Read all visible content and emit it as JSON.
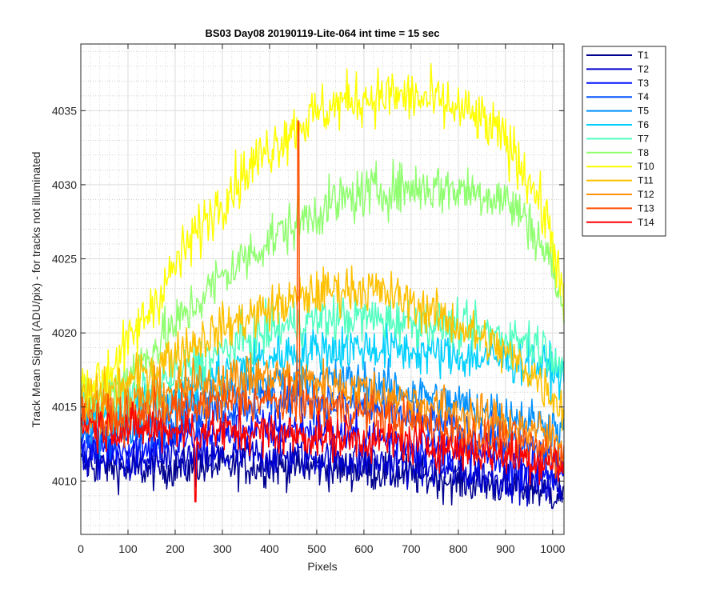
{
  "chart_data": {
    "type": "line",
    "title": "BS03 Day08 20190119-Lite-064 int time = 15 sec",
    "xlabel": "Pixels",
    "ylabel": "Track Mean Signal (ADU/pix) - for tracks not illuminated",
    "xlim": [
      0,
      1024
    ],
    "ylim": [
      4006.4,
      4039.5
    ],
    "x_ticks": [
      "0",
      "100",
      "200",
      "300",
      "400",
      "500",
      "600",
      "700",
      "800",
      "900",
      "1000"
    ],
    "y_ticks": [
      "4010",
      "4015",
      "4020",
      "4025",
      "4030",
      "4035"
    ],
    "grid": "major and minor on",
    "legend_position": "outside-right",
    "noise_note": "each trace is a noisy profile (~1 pixel resolution); values below are the underlying smooth trend plus typical noise amplitude",
    "x": [
      0,
      50,
      100,
      150,
      200,
      250,
      300,
      350,
      400,
      450,
      500,
      550,
      600,
      650,
      700,
      750,
      800,
      850,
      900,
      950,
      1000,
      1024
    ],
    "series": [
      {
        "name": "T1",
        "color": "#00008f",
        "noise": 1.4,
        "values": [
          4011.2,
          4011.0,
          4010.8,
          4010.8,
          4010.9,
          4010.9,
          4011.0,
          4011.0,
          4011.0,
          4011.0,
          4010.9,
          4010.8,
          4010.7,
          4010.6,
          4010.4,
          4010.2,
          4010.0,
          4009.8,
          4009.7,
          4009.5,
          4009.2,
          4009.0
        ]
      },
      {
        "name": "T2",
        "color": "#0000cf",
        "noise": 1.4,
        "values": [
          4011.6,
          4011.4,
          4011.3,
          4011.3,
          4011.4,
          4011.5,
          4011.6,
          4011.7,
          4011.7,
          4011.7,
          4011.6,
          4011.5,
          4011.4,
          4011.2,
          4011.0,
          4010.8,
          4010.6,
          4010.4,
          4010.2,
          4010.0,
          4009.7,
          4009.4
        ]
      },
      {
        "name": "T3",
        "color": "#0010ff",
        "noise": 1.4,
        "values": [
          4012.5,
          4012.3,
          4012.3,
          4012.5,
          4012.8,
          4013.0,
          4013.2,
          4013.4,
          4013.5,
          4013.5,
          4013.4,
          4013.2,
          4013.0,
          4012.8,
          4012.5,
          4012.2,
          4011.9,
          4011.6,
          4011.3,
          4011.0,
          4010.6,
          4010.3
        ]
      },
      {
        "name": "T4",
        "color": "#0050ff",
        "noise": 1.4,
        "values": [
          4013.0,
          4012.9,
          4013.1,
          4013.5,
          4014.0,
          4014.5,
          4014.9,
          4015.2,
          4015.4,
          4015.5,
          4015.4,
          4015.2,
          4015.0,
          4014.7,
          4014.3,
          4013.9,
          4013.5,
          4013.0,
          4012.6,
          4012.2,
          4011.8,
          4011.5
        ]
      },
      {
        "name": "T5",
        "color": "#0090ff",
        "noise": 1.5,
        "values": [
          4013.5,
          4013.5,
          4013.8,
          4014.3,
          4014.9,
          4015.5,
          4016.0,
          4016.4,
          4016.7,
          4016.9,
          4016.9,
          4016.8,
          4016.6,
          4016.3,
          4016.0,
          4015.6,
          4015.2,
          4014.8,
          4014.5,
          4014.1,
          4013.7,
          4013.3
        ]
      },
      {
        "name": "T6",
        "color": "#00d0ff",
        "noise": 1.6,
        "values": [
          4014.2,
          4014.2,
          4014.6,
          4015.2,
          4015.9,
          4016.6,
          4017.3,
          4017.9,
          4018.3,
          4018.7,
          4018.9,
          4019.0,
          4019.0,
          4018.9,
          4018.8,
          4018.6,
          4018.4,
          4018.3,
          4018.2,
          4018.0,
          4017.6,
          4016.8
        ]
      },
      {
        "name": "T7",
        "color": "#50ffc0",
        "noise": 1.6,
        "values": [
          4014.8,
          4014.9,
          4015.4,
          4016.2,
          4017.1,
          4018.0,
          4018.8,
          4019.5,
          4020.1,
          4020.6,
          4020.9,
          4021.0,
          4021.0,
          4020.9,
          4020.8,
          4020.6,
          4020.3,
          4020.1,
          4019.8,
          4019.5,
          4018.7,
          4017.5
        ]
      },
      {
        "name": "T8",
        "color": "#90ff70",
        "noise": 1.8,
        "values": [
          4015.5,
          4016.0,
          4017.2,
          4018.8,
          4020.5,
          4022.2,
          4023.8,
          4025.1,
          4026.3,
          4027.3,
          4028.2,
          4028.9,
          4029.4,
          4029.7,
          4029.8,
          4029.8,
          4029.7,
          4029.5,
          4029.0,
          4027.5,
          4024.5,
          4021.0
        ]
      },
      {
        "name": "T10",
        "color": "#ffff00",
        "noise": 1.9,
        "values": [
          4016.3,
          4017.1,
          4019.2,
          4021.8,
          4024.5,
          4027.0,
          4029.1,
          4030.9,
          4032.5,
          4033.8,
          4034.8,
          4035.5,
          4035.9,
          4036.0,
          4035.9,
          4035.6,
          4035.1,
          4034.3,
          4033.0,
          4030.5,
          4026.5,
          4021.5
        ]
      },
      {
        "name": "T11",
        "color": "#ffc000",
        "noise": 1.6,
        "values": [
          4015.8,
          4015.9,
          4016.6,
          4017.6,
          4018.6,
          4019.5,
          4020.3,
          4021.0,
          4021.6,
          4022.2,
          4022.7,
          4023.0,
          4023.0,
          4022.6,
          4022.0,
          4021.3,
          4020.5,
          4019.6,
          4018.6,
          4017.5,
          4015.8,
          4014.8
        ]
      },
      {
        "name": "T12",
        "color": "#ff9000",
        "noise": 1.6,
        "values": [
          4015.0,
          4014.9,
          4015.2,
          4015.6,
          4016.1,
          4016.5,
          4016.8,
          4017.0,
          4017.0,
          4016.9,
          4016.7,
          4016.4,
          4016.1,
          4015.8,
          4015.4,
          4015.0,
          4014.6,
          4014.2,
          4013.9,
          4013.5,
          4013.0,
          4012.5
        ]
      },
      {
        "name": "T13",
        "color": "#ff5000",
        "noise": 1.5,
        "values": [
          4014.3,
          4014.1,
          4014.2,
          4014.5,
          4014.8,
          4015.1,
          4015.3,
          4015.4,
          4015.4,
          4015.3,
          4015.1,
          4014.9,
          4014.6,
          4014.3,
          4014.0,
          4013.7,
          4013.3,
          4013.0,
          4012.7,
          4012.3,
          4011.9,
          4011.5
        ]
      },
      {
        "name": "T14",
        "color": "#ff0000",
        "noise": 1.5,
        "values": [
          4014.0,
          4013.6,
          4013.5,
          4013.5,
          4013.5,
          4013.4,
          4013.4,
          4013.3,
          4013.2,
          4013.1,
          4013.0,
          4012.9,
          4012.8,
          4012.7,
          4012.6,
          4012.4,
          4012.2,
          4012.0,
          4011.8,
          4011.5,
          4011.2,
          4011.0
        ]
      }
    ],
    "annotations": [
      {
        "series": "T13",
        "type": "spike",
        "x": 461,
        "y_peak": 4034.3
      },
      {
        "series": "T14",
        "type": "dip",
        "x": 243,
        "y_min": 4008.6
      }
    ]
  }
}
